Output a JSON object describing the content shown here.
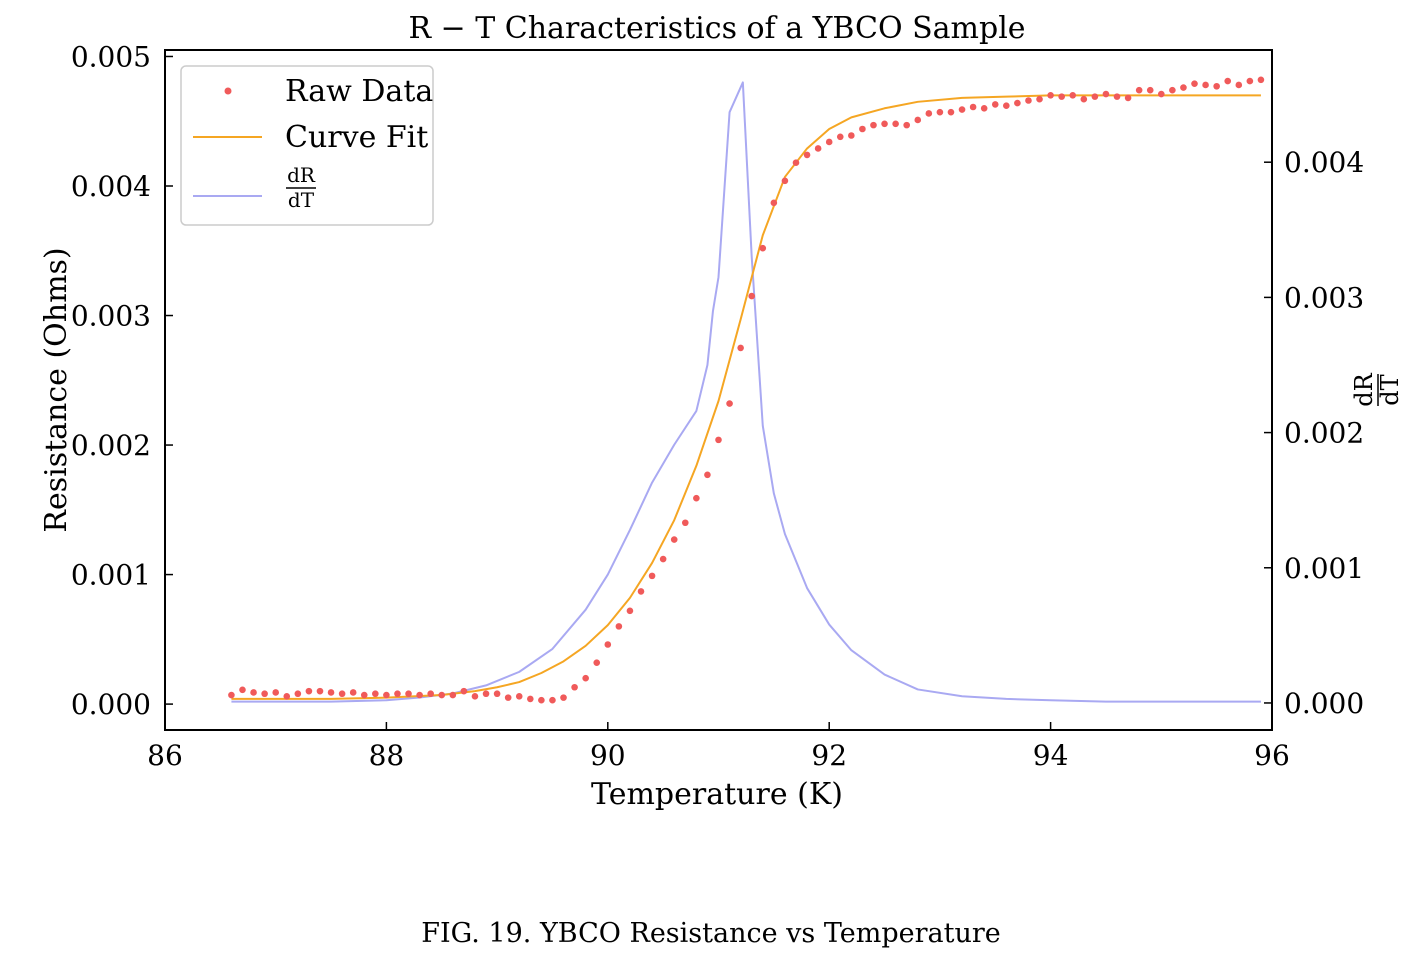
{
  "figure_caption": "FIG. 19. YBCO Resistance vs Temperature",
  "colors": {
    "raw_data": "#f05a5a",
    "curve_fit": "#f5a623",
    "derivative": "#a9a9f2",
    "axes": "#000000",
    "legend_border": "#cccccc"
  },
  "chart_data": {
    "type": "line",
    "title": "R − T Characteristics of a YBCO Sample",
    "xlabel": "Temperature (K)",
    "ylabel": "Resistance (Ohms)",
    "ylabel_right_num": "dR",
    "ylabel_right_den": "dT",
    "xlim": [
      86,
      96
    ],
    "ylim": [
      -0.0002,
      0.00505
    ],
    "ylim_right": [
      -0.0002,
      0.00483
    ],
    "xticks": [
      86,
      88,
      90,
      92,
      94,
      96
    ],
    "xtick_labels": [
      "86",
      "88",
      "90",
      "92",
      "94",
      "96"
    ],
    "yticks": [
      0,
      0.001,
      0.002,
      0.003,
      0.004,
      0.005
    ],
    "ytick_labels": [
      "0.000",
      "0.001",
      "0.002",
      "0.003",
      "0.004",
      "0.005"
    ],
    "yticks_right": [
      0,
      0.001,
      0.002,
      0.003,
      0.004
    ],
    "ytick_labels_right": [
      "0.000",
      "0.001",
      "0.002",
      "0.003",
      "0.004"
    ],
    "grid": false,
    "legend_position": "top-left",
    "series": [
      {
        "name": "Raw Data",
        "kind": "scatter",
        "axis": "left",
        "x": [
          86.6,
          86.7,
          86.8,
          86.9,
          87.0,
          87.1,
          87.2,
          87.3,
          87.4,
          87.5,
          87.6,
          87.7,
          87.8,
          87.9,
          88.0,
          88.1,
          88.2,
          88.3,
          88.4,
          88.5,
          88.6,
          88.7,
          88.8,
          88.9,
          89.0,
          89.1,
          89.2,
          89.3,
          89.4,
          89.5,
          89.6,
          89.7,
          89.8,
          89.9,
          90.0,
          90.1,
          90.2,
          90.3,
          90.4,
          90.5,
          90.6,
          90.7,
          90.8,
          90.9,
          91.0,
          91.1,
          91.2,
          91.3,
          91.4,
          91.5,
          91.6,
          91.7,
          91.8,
          91.9,
          92.0,
          92.1,
          92.2,
          92.3,
          92.4,
          92.5,
          92.6,
          92.7,
          92.8,
          92.9,
          93.0,
          93.1,
          93.2,
          93.3,
          93.4,
          93.5,
          93.6,
          93.7,
          93.8,
          93.9,
          94.0,
          94.1,
          94.2,
          94.3,
          94.4,
          94.5,
          94.6,
          94.7,
          94.8,
          94.9,
          95.0,
          95.1,
          95.2,
          95.3,
          95.4,
          95.5,
          95.6,
          95.7,
          95.8,
          95.9
        ],
        "y": [
          7e-05,
          0.00011,
          9e-05,
          8e-05,
          9e-05,
          6e-05,
          8e-05,
          0.0001,
          0.0001,
          9e-05,
          8e-05,
          9e-05,
          7e-05,
          8e-05,
          7e-05,
          8e-05,
          8e-05,
          7e-05,
          8e-05,
          7e-05,
          7e-05,
          0.0001,
          6e-05,
          8e-05,
          8e-05,
          5e-05,
          6e-05,
          4e-05,
          3e-05,
          3e-05,
          5e-05,
          0.00013,
          0.0002,
          0.00032,
          0.00046,
          0.0006,
          0.00072,
          0.00087,
          0.00099,
          0.00112,
          0.00127,
          0.0014,
          0.00159,
          0.00177,
          0.00204,
          0.00232,
          0.00275,
          0.00315,
          0.00352,
          0.00387,
          0.00404,
          0.00418,
          0.00424,
          0.00429,
          0.00434,
          0.00438,
          0.00439,
          0.00444,
          0.00447,
          0.00448,
          0.00448,
          0.00447,
          0.00451,
          0.00456,
          0.00457,
          0.00457,
          0.00459,
          0.00461,
          0.0046,
          0.00463,
          0.00462,
          0.00464,
          0.00466,
          0.00467,
          0.0047,
          0.00469,
          0.0047,
          0.00467,
          0.00469,
          0.00471,
          0.00469,
          0.00468,
          0.00474,
          0.00474,
          0.00471,
          0.00474,
          0.00476,
          0.00479,
          0.00478,
          0.00477,
          0.00481,
          0.00478,
          0.00481,
          0.00482
        ]
      },
      {
        "name": "Curve Fit",
        "kind": "line",
        "axis": "left",
        "x": [
          86.6,
          87.0,
          87.5,
          88.0,
          88.5,
          88.8,
          89.0,
          89.2,
          89.4,
          89.6,
          89.8,
          90.0,
          90.2,
          90.4,
          90.6,
          90.8,
          91.0,
          91.2,
          91.4,
          91.6,
          91.8,
          92.0,
          92.2,
          92.5,
          92.8,
          93.2,
          93.6,
          94.0,
          94.5,
          95.0,
          95.5,
          95.9
        ],
        "y": [
          4e-05,
          4e-05,
          4e-05,
          5e-05,
          7e-05,
          0.0001,
          0.00013,
          0.00017,
          0.00024,
          0.00033,
          0.00045,
          0.00061,
          0.00082,
          0.00109,
          0.00142,
          0.00184,
          0.00234,
          0.00297,
          0.00362,
          0.00407,
          0.00429,
          0.00444,
          0.00453,
          0.0046,
          0.00465,
          0.00468,
          0.00469,
          0.0047,
          0.0047,
          0.0047,
          0.0047,
          0.0047
        ]
      },
      {
        "name": "dR/dT",
        "kind": "line",
        "axis": "right",
        "x": [
          86.6,
          87.0,
          87.5,
          88.0,
          88.3,
          88.6,
          88.9,
          89.2,
          89.5,
          89.8,
          90.0,
          90.2,
          90.4,
          90.6,
          90.8,
          90.9,
          90.95,
          91.0,
          91.1,
          91.22,
          91.3,
          91.4,
          91.5,
          91.6,
          91.8,
          92.0,
          92.2,
          92.5,
          92.8,
          93.2,
          93.6,
          94.0,
          94.5,
          95.0,
          95.5,
          95.9
        ],
        "y": [
          1e-05,
          1e-05,
          1e-05,
          2e-05,
          4e-05,
          7e-05,
          0.00013,
          0.00023,
          0.0004,
          0.00069,
          0.00095,
          0.00128,
          0.00163,
          0.00191,
          0.00216,
          0.0025,
          0.0029,
          0.00315,
          0.00437,
          0.00459,
          0.0033,
          0.00205,
          0.00155,
          0.00125,
          0.00085,
          0.00058,
          0.00039,
          0.00021,
          0.0001,
          5e-05,
          3e-05,
          2e-05,
          1e-05,
          1e-05,
          1e-05,
          1e-05
        ]
      }
    ]
  }
}
